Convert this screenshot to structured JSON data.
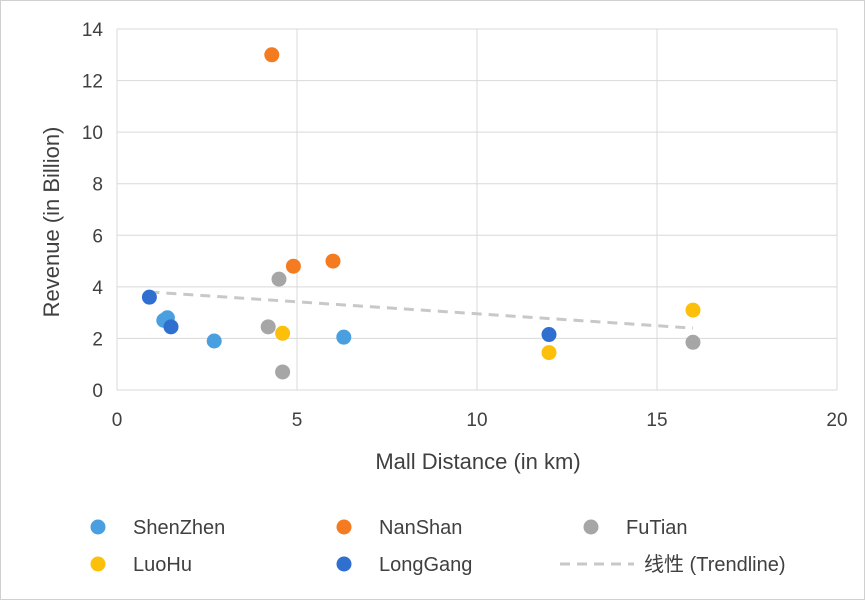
{
  "chart_data": {
    "type": "scatter",
    "xlabel": "Mall Distance (in km)",
    "ylabel": "Revenue (in Billion)",
    "xlim": [
      0,
      20
    ],
    "ylim": [
      0,
      14
    ],
    "x_ticks": [
      "0",
      "5",
      "10",
      "15",
      "20"
    ],
    "y_ticks": [
      "0",
      "2",
      "4",
      "6",
      "8",
      "10",
      "12",
      "14"
    ],
    "grid": true,
    "legend_position": "bottom",
    "series": [
      {
        "name": "ShenZhen",
        "color": "#4a9fe0",
        "points": [
          [
            1.3,
            2.7
          ],
          [
            1.4,
            2.8
          ],
          [
            2.7,
            1.9
          ],
          [
            6.3,
            2.05
          ]
        ]
      },
      {
        "name": "NanShan",
        "color": "#f47b20",
        "points": [
          [
            4.3,
            13.0
          ],
          [
            4.9,
            4.8
          ],
          [
            6.0,
            5.0
          ]
        ]
      },
      {
        "name": "FuTian",
        "color": "#a6a6a6",
        "points": [
          [
            4.5,
            4.3
          ],
          [
            4.2,
            2.45
          ],
          [
            4.6,
            0.7
          ],
          [
            16.0,
            1.85
          ]
        ]
      },
      {
        "name": "LuoHu",
        "color": "#fcc00a",
        "points": [
          [
            4.6,
            2.2
          ],
          [
            12.0,
            1.45
          ],
          [
            16.0,
            3.1
          ]
        ]
      },
      {
        "name": "LongGang",
        "color": "#2f6fcf",
        "points": [
          [
            0.9,
            3.6
          ],
          [
            1.5,
            2.45
          ],
          [
            12.0,
            2.15
          ]
        ]
      }
    ],
    "trendline": {
      "name": "线性 (Trendline)",
      "color": "#c8c8c8",
      "x": [
        0.9,
        16.0
      ],
      "y": [
        3.8,
        2.4
      ]
    }
  }
}
